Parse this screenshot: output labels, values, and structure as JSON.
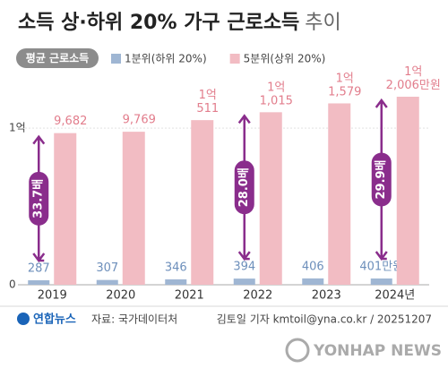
{
  "chart_data": {
    "type": "bar",
    "title": "소득 상·하위 20% 가구 근로소득",
    "title_suffix": "추이",
    "badge": "평균 근로소득",
    "categories": [
      "2019",
      "2020",
      "2021",
      "2022",
      "2023",
      "2024년"
    ],
    "series": [
      {
        "name": "1분위(하위 20%)",
        "color": "#9fb6d3",
        "label_color": "#6d8fbb",
        "values": [
          287,
          307,
          346,
          394,
          406,
          401
        ],
        "value_labels": [
          "287",
          "307",
          "346",
          "394",
          "406",
          "401만원"
        ]
      },
      {
        "name": "5분위(상위 20%)",
        "color": "#f2bcc3",
        "label_color": "#e27d8c",
        "values": [
          9682,
          9769,
          10511,
          11015,
          11579,
          12006
        ],
        "value_labels": [
          "9,682",
          "9,769",
          "1억\n511",
          "1억\n1,015",
          "1억\n1,579",
          "1억\n2,006만원"
        ]
      }
    ],
    "annotations": [
      {
        "category": 0,
        "text": "33.7배"
      },
      {
        "category": 3,
        "text": "28.0배"
      },
      {
        "category": 5,
        "text": "29.9배"
      }
    ],
    "ylim": [
      0,
      14750
    ],
    "yticks": [
      0,
      {
        "value": 10000,
        "label": "1억"
      }
    ],
    "source": "자료: 국가데이터처",
    "credit": "김토일 기자 kmtoil@yna.co.kr / 20251207",
    "logo": "연합뉴스",
    "watermark": "YONHAP NEWS"
  }
}
